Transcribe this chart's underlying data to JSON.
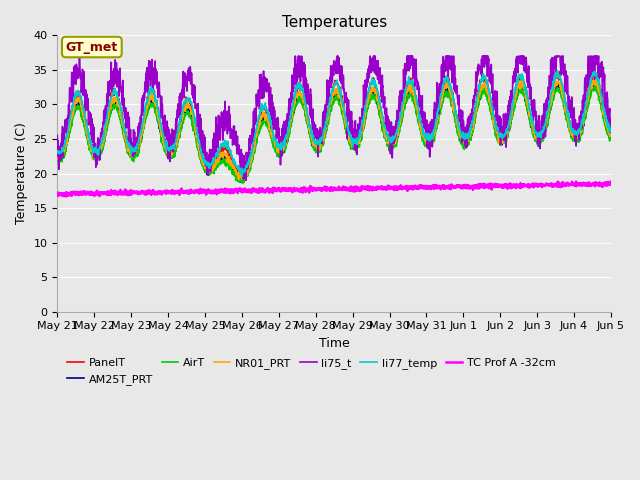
{
  "title": "Temperatures",
  "xlabel": "Time",
  "ylabel": "Temperature (C)",
  "ylim": [
    0,
    40
  ],
  "n_days": 15,
  "background_color": "#e8e8e8",
  "annotation_text": "GT_met",
  "annotation_color": "#8b0000",
  "annotation_bg": "#ffffcc",
  "annotation_border": "#999900",
  "x_tick_labels": [
    "May 21",
    "May 22",
    "May 23",
    "May 24",
    "May 25",
    "May 26",
    "May 27",
    "May 28",
    "May 29",
    "May 30",
    "May 31",
    "Jun 1",
    "Jun 2",
    "Jun 3",
    "Jun 4",
    "Jun 5"
  ],
  "series_names": [
    "PanelT",
    "AM25T_PRT",
    "AirT",
    "NR01_PRT",
    "li75_t",
    "li77_temp",
    "TC Prof A -32cm"
  ],
  "series_colors": [
    "#ff0000",
    "#00008b",
    "#00cc00",
    "#ffa500",
    "#9900cc",
    "#00cccc",
    "#ff00ff"
  ],
  "series_widths": [
    1.2,
    1.2,
    1.2,
    1.2,
    1.2,
    1.2,
    1.8
  ],
  "yticks": [
    0,
    5,
    10,
    15,
    20,
    25,
    30,
    35,
    40
  ],
  "grid_color": "#ffffff",
  "figsize": [
    6.4,
    4.8
  ],
  "dpi": 100,
  "legend_ncol": 6
}
